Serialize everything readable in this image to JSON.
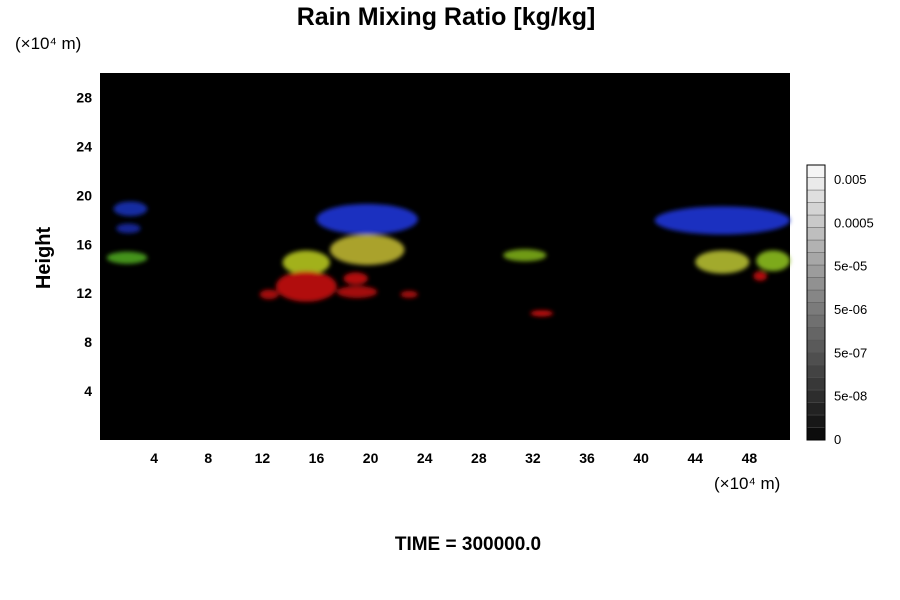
{
  "chart_data": {
    "type": "heatmap",
    "title": "Rain Mixing Ratio [kg/kg]",
    "ylabel": "Height",
    "x_unit": "(×10⁴ m)",
    "y_unit": "(×10⁴ m)",
    "xlim": [
      0,
      51
    ],
    "ylim": [
      0,
      30
    ],
    "x_ticks": [
      4,
      8,
      12,
      16,
      20,
      24,
      28,
      32,
      36,
      40,
      44,
      48
    ],
    "y_ticks": [
      4,
      8,
      12,
      16,
      20,
      24,
      28
    ],
    "background_color": "#000000",
    "colorbar": {
      "labels": [
        "0.005",
        "0.0005",
        "5e-05",
        "5e-06",
        "5e-07",
        "5e-08",
        "0"
      ],
      "levels": 22
    },
    "footer": "TIME = 300000.0",
    "regions": [
      {
        "x": [
          1.0,
          3.5
        ],
        "y": [
          18.3,
          19.5
        ],
        "color": "#1a2fb0"
      },
      {
        "x": [
          1.2,
          3.0
        ],
        "y": [
          16.9,
          17.7
        ],
        "color": "#1428a0"
      },
      {
        "x": [
          16.0,
          23.5
        ],
        "y": [
          16.8,
          19.3
        ],
        "color": "#2035d0"
      },
      {
        "x": [
          17.0,
          22.5
        ],
        "y": [
          14.3,
          16.8
        ],
        "color": "#b8b032"
      },
      {
        "x": [
          0.5,
          3.5
        ],
        "y": [
          14.4,
          15.4
        ],
        "color": "#4aa020"
      },
      {
        "x": [
          13.5,
          17.0
        ],
        "y": [
          13.5,
          15.5
        ],
        "color": "#b0c020"
      },
      {
        "x": [
          13.0,
          17.5
        ],
        "y": [
          11.3,
          13.8
        ],
        "color": "#c01010"
      },
      {
        "x": [
          18.0,
          19.8
        ],
        "y": [
          12.7,
          13.7
        ],
        "color": "#c01010"
      },
      {
        "x": [
          11.8,
          13.2
        ],
        "y": [
          11.5,
          12.3
        ],
        "color": "#b00808"
      },
      {
        "x": [
          17.5,
          20.5
        ],
        "y": [
          11.6,
          12.6
        ],
        "color": "#b00808"
      },
      {
        "x": [
          22.2,
          23.5
        ],
        "y": [
          11.6,
          12.2
        ],
        "color": "#b00808"
      },
      {
        "x": [
          29.8,
          33.0
        ],
        "y": [
          14.6,
          15.6
        ],
        "color": "#7aa818"
      },
      {
        "x": [
          31.8,
          33.5
        ],
        "y": [
          10.1,
          10.6
        ],
        "color": "#d01010"
      },
      {
        "x": [
          41.0,
          51.0
        ],
        "y": [
          16.8,
          19.1
        ],
        "color": "#2035d0"
      },
      {
        "x": [
          44.0,
          48.0
        ],
        "y": [
          13.6,
          15.5
        ],
        "color": "#b0b830"
      },
      {
        "x": [
          48.5,
          51.0
        ],
        "y": [
          13.8,
          15.5
        ],
        "color": "#88b820"
      },
      {
        "x": [
          48.3,
          49.3
        ],
        "y": [
          13.0,
          13.8
        ],
        "color": "#c01010"
      }
    ]
  }
}
